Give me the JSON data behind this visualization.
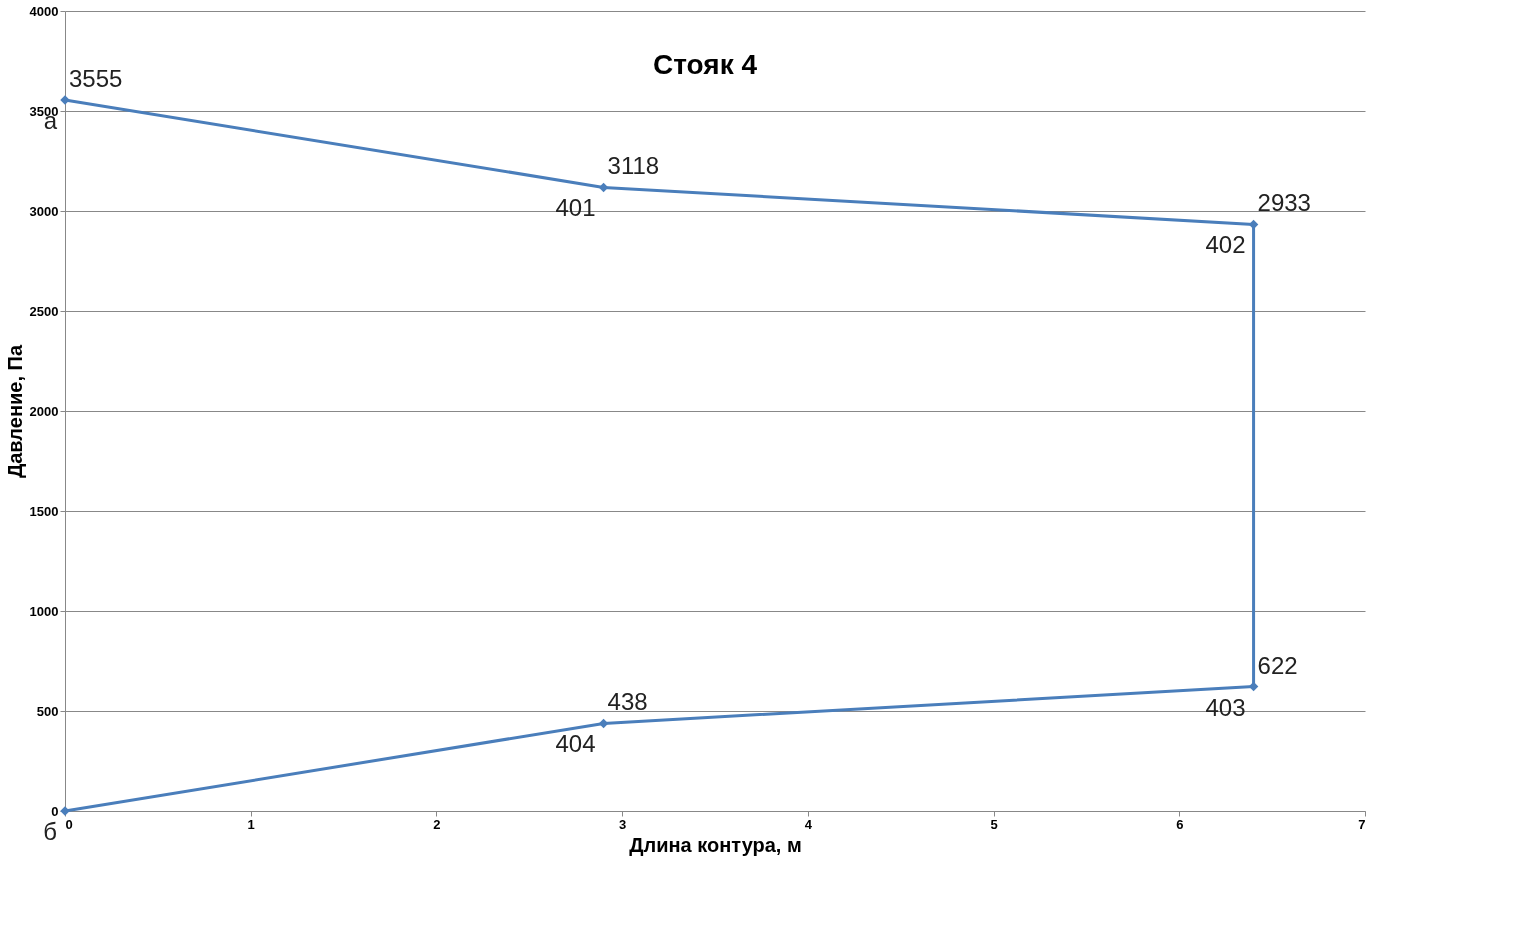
{
  "chart_data": {
    "type": "line",
    "title": "Стояк 4",
    "xlabel": "Длина контура, м",
    "ylabel": "Давление, Па",
    "x": [
      0,
      2.9,
      6.4,
      6.4,
      2.9,
      0
    ],
    "series": [
      {
        "color": "#4a7ebb",
        "values": [
          3555,
          3118,
          2933,
          622,
          438,
          0
        ]
      }
    ],
    "xlim": [
      0,
      7
    ],
    "xticks": [
      0,
      1,
      2,
      3,
      4,
      5,
      6,
      7
    ],
    "ylim": [
      0,
      4000
    ],
    "yticks": [
      0,
      500,
      1000,
      1500,
      2000,
      2500,
      3000,
      3500,
      4000
    ],
    "value_labels": [
      "3555",
      "3118",
      "2933",
      "622",
      "438",
      null
    ],
    "grid": "y",
    "marker": "diamond",
    "line_style": "solid",
    "annotations": [
      {
        "text": "а",
        "x": 0,
        "y": 3555
      },
      {
        "text": "401",
        "x": 2.9,
        "y": 3118
      },
      {
        "text": "402",
        "x": 6.4,
        "y": 2933
      },
      {
        "text": "403",
        "x": 6.4,
        "y": 622
      },
      {
        "text": "404",
        "x": 2.9,
        "y": 438
      },
      {
        "text": "б",
        "x": 0,
        "y": 0
      }
    ]
  }
}
